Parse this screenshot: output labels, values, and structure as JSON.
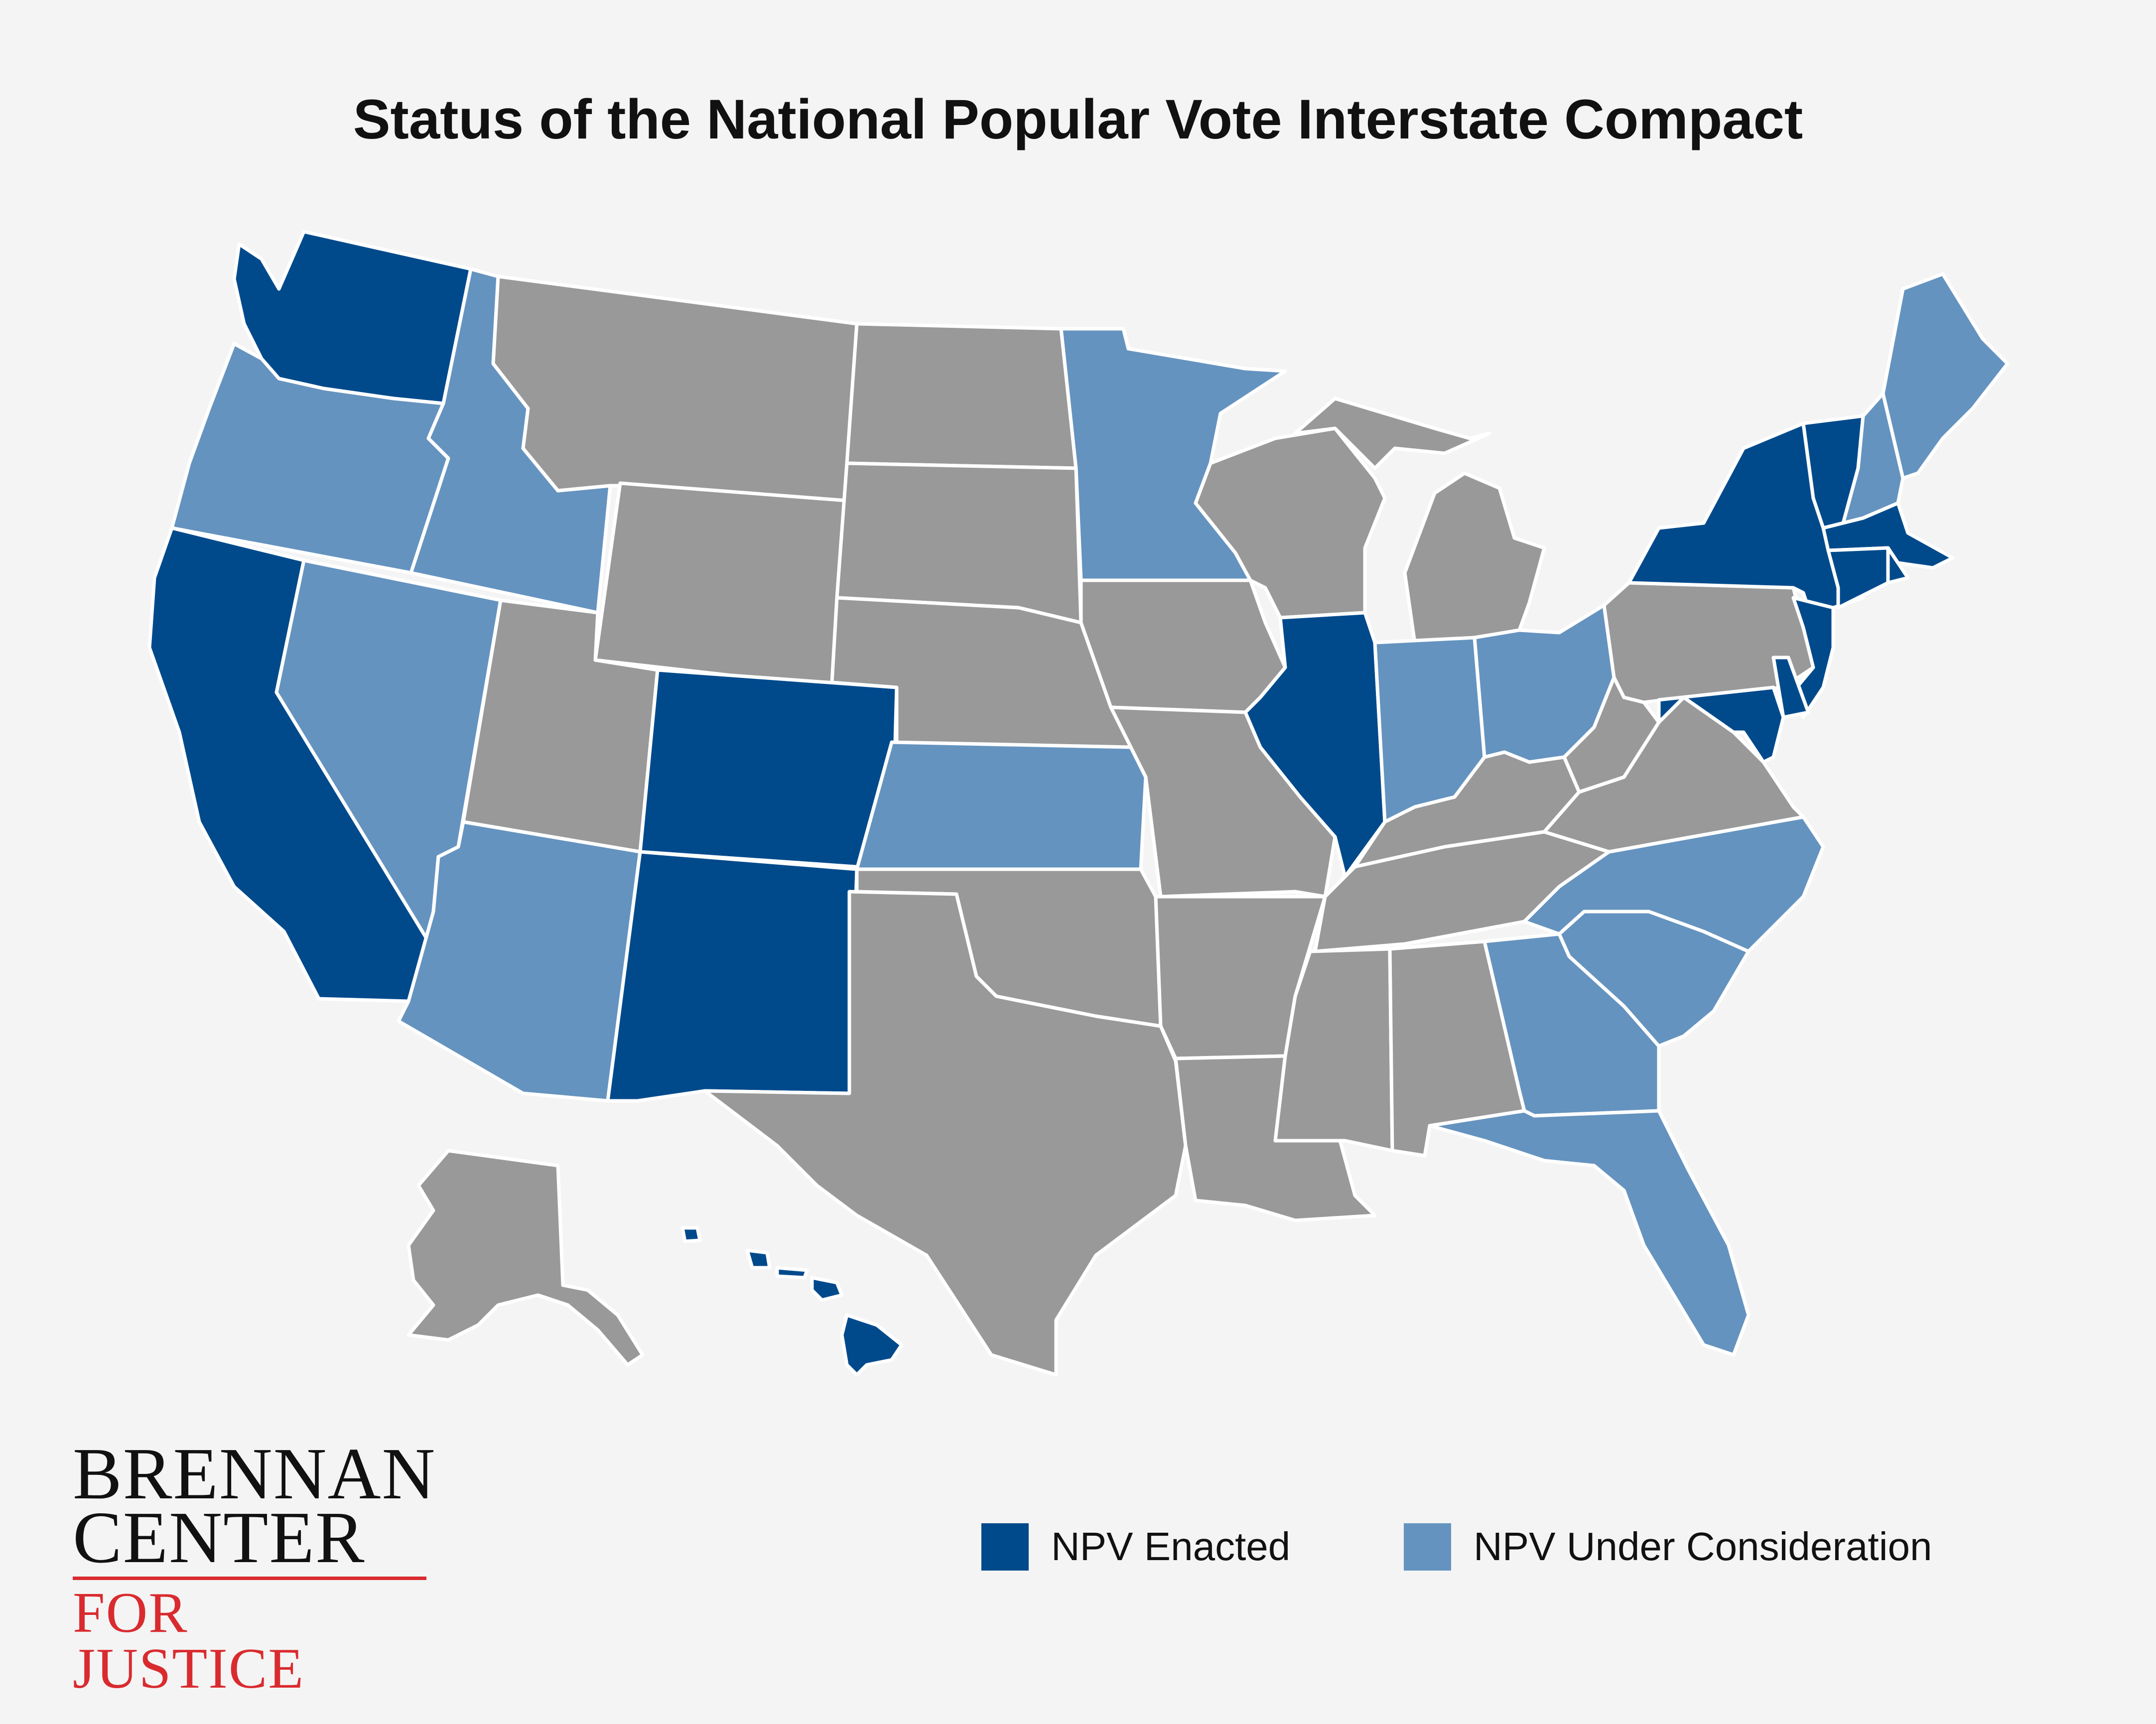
{
  "title": "Status of the National Popular Vote Interstate Compact",
  "colors": {
    "enacted": "#004a8c",
    "under_consideration": "#6593bf",
    "none": "#999999",
    "background": "#f4f4f4",
    "border": "#ffffff",
    "logo_accent": "#d92b2f"
  },
  "legend": {
    "enacted_label": "NPV Enacted",
    "consideration_label": "NPV Under Consideration"
  },
  "logo": {
    "line1": "BRENNAN",
    "line2": "CENTER",
    "line3": "FOR JUSTICE"
  },
  "states": {
    "WA": "enacted",
    "OR": "under_consideration",
    "CA": "enacted",
    "NV": "under_consideration",
    "ID": "under_consideration",
    "MT": "none",
    "WY": "none",
    "UT": "none",
    "AZ": "under_consideration",
    "CO": "enacted",
    "NM": "enacted",
    "ND": "none",
    "SD": "none",
    "NE": "none",
    "KS": "under_consideration",
    "OK": "none",
    "TX": "none",
    "MN": "under_consideration",
    "IA": "none",
    "MO": "none",
    "AR": "none",
    "LA": "none",
    "WI": "none",
    "IL": "enacted",
    "MI": "none",
    "IN": "under_consideration",
    "OH": "under_consideration",
    "KY": "none",
    "TN": "none",
    "MS": "none",
    "AL": "none",
    "GA": "under_consideration",
    "FL": "under_consideration",
    "SC": "under_consideration",
    "NC": "under_consideration",
    "VA": "none",
    "WV": "none",
    "PA": "none",
    "NY": "enacted",
    "VT": "enacted",
    "NH": "under_consideration",
    "ME": "under_consideration",
    "MA": "enacted",
    "RI": "enacted",
    "CT": "enacted",
    "NJ": "enacted",
    "DE": "enacted",
    "MD": "enacted",
    "AK": "none",
    "HI": "enacted"
  }
}
